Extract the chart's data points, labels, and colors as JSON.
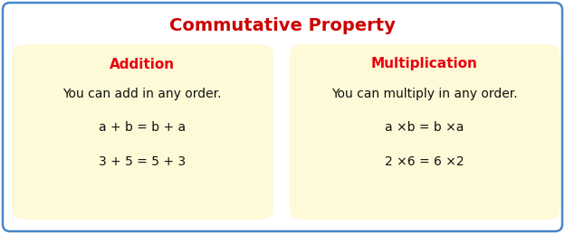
{
  "title": "Commutative Property",
  "title_color": "#cc0000",
  "title_fontsize": 14,
  "bg_color": "#ffffff",
  "border_color": "#4a86c8",
  "box_bg_color": "#fef9d7",
  "left_box": {
    "header": "Addition",
    "header_color": "#e8000e",
    "header_fontsize": 11,
    "lines": [
      "You can add in any order.",
      "a + b = b + a",
      "3 + 5 = 5 + 3"
    ],
    "line_fontsize": 10
  },
  "right_box": {
    "header": "Multiplication",
    "header_color": "#e8000e",
    "header_fontsize": 11,
    "lines": [
      "You can multiply in any order.",
      "a ×b = b ×a",
      "2 ×6 = 6 ×2"
    ],
    "line_fontsize": 10
  },
  "fig_width": 6.24,
  "fig_height": 2.59,
  "dpi": 100
}
